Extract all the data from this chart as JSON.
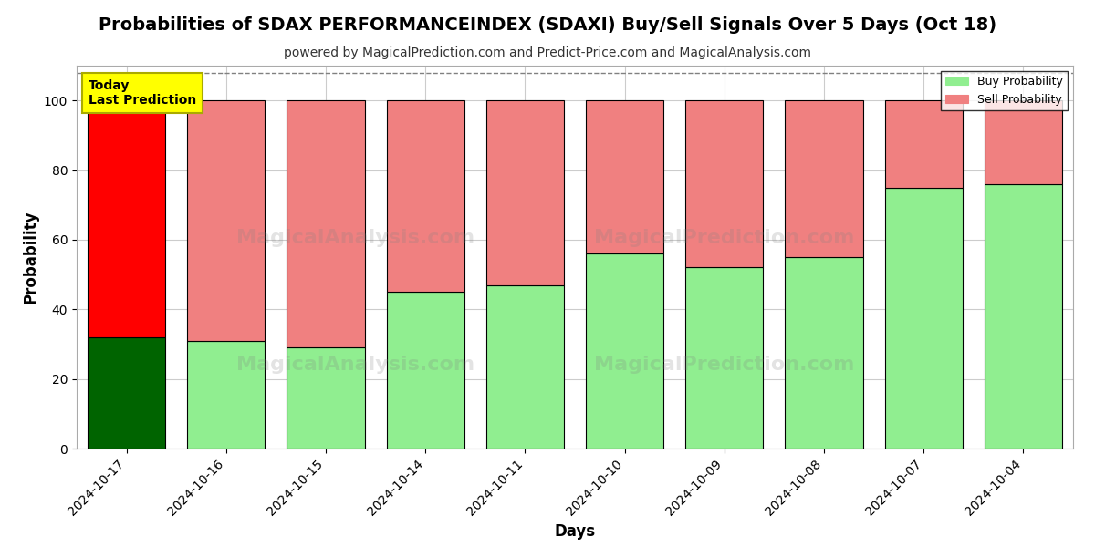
{
  "title": "Probabilities of SDAX PERFORMANCEINDEX (SDAXI) Buy/Sell Signals Over 5 Days (Oct 18)",
  "subtitle": "powered by MagicalPrediction.com and Predict-Price.com and MagicalAnalysis.com",
  "xlabel": "Days",
  "ylabel": "Probability",
  "categories": [
    "2024-10-17",
    "2024-10-16",
    "2024-10-15",
    "2024-10-14",
    "2024-10-11",
    "2024-10-10",
    "2024-10-09",
    "2024-10-08",
    "2024-10-07",
    "2024-10-04"
  ],
  "buy_values": [
    32,
    31,
    29,
    45,
    47,
    56,
    52,
    55,
    75,
    76
  ],
  "sell_values": [
    68,
    69,
    71,
    55,
    53,
    44,
    48,
    45,
    25,
    24
  ],
  "today_idx": 0,
  "buy_color_today": "#006400",
  "sell_color_today": "#ff0000",
  "buy_color_normal": "#90ee90",
  "sell_color_normal": "#f08080",
  "bar_edge_color": "#000000",
  "ylim": [
    0,
    110
  ],
  "yticks": [
    0,
    20,
    40,
    60,
    80,
    100
  ],
  "dashed_line_y": 108,
  "legend_buy_label": "Buy Probability",
  "legend_sell_label": "Sell Probability",
  "today_label": "Today\nLast Prediction",
  "today_box_facecolor": "#ffff00",
  "today_box_edgecolor": "#aaaa00",
  "background_color": "#ffffff",
  "grid_color": "#cccccc",
  "title_fontsize": 14,
  "subtitle_fontsize": 10,
  "axis_label_fontsize": 12,
  "tick_fontsize": 10
}
